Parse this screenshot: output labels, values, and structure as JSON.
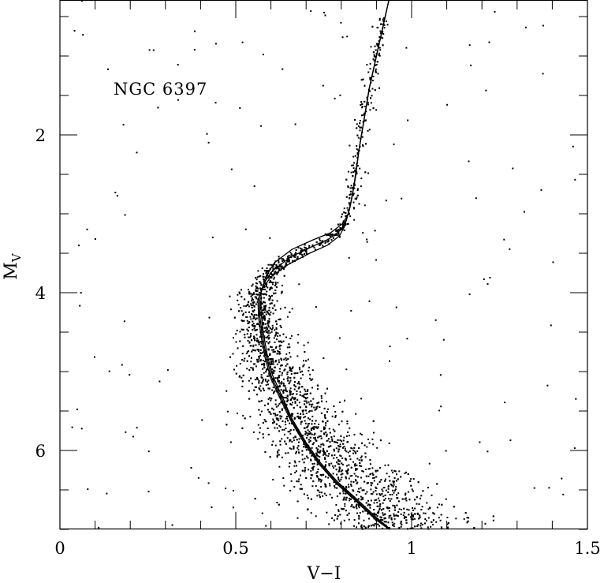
{
  "chart_data": {
    "type": "scatter",
    "title": "",
    "annotation": "NGC 6397",
    "xlabel": "V−I",
    "ylabel_main": "M",
    "ylabel_sub": "V",
    "xlim": [
      0,
      1.5
    ],
    "ylim": [
      7.0,
      0.3
    ],
    "y_inverted": true,
    "grid": false,
    "x_ticks": [
      {
        "value": 0,
        "label": "0"
      },
      {
        "value": 0.5,
        "label": "0.5"
      },
      {
        "value": 1,
        "label": "1"
      },
      {
        "value": 1.5,
        "label": "1.5"
      }
    ],
    "y_ticks": [
      {
        "value": 2,
        "label": "2"
      },
      {
        "value": 4,
        "label": "4"
      },
      {
        "value": 6,
        "label": "6"
      }
    ],
    "x_minor_step": 0.1,
    "y_minor_step": 0.5,
    "isochrones": [
      {
        "x": [
          0.935,
          0.92,
          0.9,
          0.88,
          0.865,
          0.85,
          0.84,
          0.83,
          0.82,
          0.805,
          0.77,
          0.72,
          0.66,
          0.61,
          0.585,
          0.572,
          0.572,
          0.578,
          0.59,
          0.605,
          0.63,
          0.66,
          0.7,
          0.74,
          0.79,
          0.84,
          0.9,
          0.94
        ],
        "y": [
          0.3,
          0.6,
          1.0,
          1.4,
          1.8,
          2.2,
          2.55,
          2.8,
          3.0,
          3.12,
          3.24,
          3.33,
          3.45,
          3.62,
          3.8,
          4.0,
          4.25,
          4.5,
          4.8,
          5.05,
          5.3,
          5.6,
          5.9,
          6.15,
          6.4,
          6.6,
          6.85,
          7.0
        ]
      },
      {
        "x": [
          0.935,
          0.92,
          0.9,
          0.88,
          0.865,
          0.85,
          0.84,
          0.828,
          0.815,
          0.8,
          0.765,
          0.715,
          0.655,
          0.605,
          0.58,
          0.567,
          0.568,
          0.575,
          0.587,
          0.602,
          0.628,
          0.658,
          0.698,
          0.738,
          0.788,
          0.838,
          0.898,
          0.938
        ],
        "y": [
          0.3,
          0.6,
          1.0,
          1.4,
          1.8,
          2.2,
          2.55,
          2.85,
          3.07,
          3.2,
          3.32,
          3.42,
          3.55,
          3.72,
          3.88,
          4.05,
          4.28,
          4.52,
          4.82,
          5.07,
          5.32,
          5.61,
          5.91,
          6.16,
          6.41,
          6.61,
          6.86,
          7.0
        ]
      },
      {
        "x": [
          0.935,
          0.92,
          0.9,
          0.88,
          0.865,
          0.85,
          0.838,
          0.825,
          0.81,
          0.795,
          0.76,
          0.71,
          0.65,
          0.6,
          0.575,
          0.563,
          0.565,
          0.572,
          0.584,
          0.6,
          0.626,
          0.656,
          0.696,
          0.736,
          0.786,
          0.836,
          0.896,
          0.936
        ],
        "y": [
          0.3,
          0.6,
          1.0,
          1.4,
          1.8,
          2.2,
          2.58,
          2.92,
          3.15,
          3.28,
          3.4,
          3.5,
          3.64,
          3.8,
          3.95,
          4.1,
          4.32,
          4.55,
          4.84,
          5.09,
          5.34,
          5.62,
          5.92,
          6.17,
          6.42,
          6.62,
          6.87,
          7.0
        ]
      }
    ],
    "scatter_summary": {
      "n_points": 3200,
      "description_hidden": true
    }
  }
}
